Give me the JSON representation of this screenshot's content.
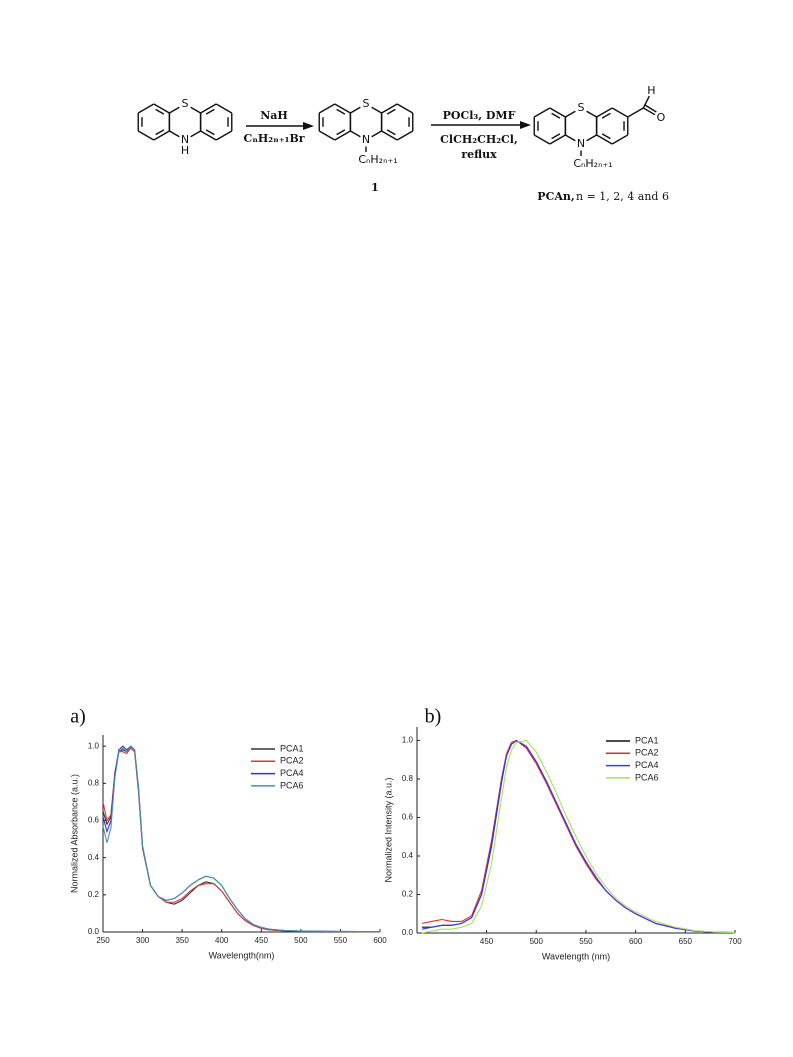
{
  "scheme": {
    "compounds": [
      {
        "atoms": [
          "S",
          "N",
          "H"
        ]
      },
      {
        "atoms": [
          "S",
          "N"
        ],
        "substituent": "CₙH₂ₙ₊₁",
        "number": "1"
      },
      {
        "atoms": [
          "S",
          "N",
          "H",
          "O"
        ],
        "substituent": "CₙH₂ₙ₊₁",
        "name": "PCAn,",
        "note": "n = 1, 2, 4 and 6"
      }
    ],
    "steps": [
      {
        "above": [
          "NaH"
        ],
        "below": [
          "CₙH₂ₙ₊₁Br"
        ]
      },
      {
        "above": [
          "POCl₃, DMF"
        ],
        "below": [
          "ClCH₂CH₂Cl,",
          "reflux"
        ]
      }
    ]
  },
  "chart_data": [
    {
      "type": "line",
      "label": "a)",
      "xlabel": "Wavelength(nm)",
      "ylabel": "Normalized Absorbance (a.u.)",
      "xlim": [
        250,
        600
      ],
      "ylim": [
        0,
        1.06
      ],
      "xticks": [
        250,
        300,
        350,
        400,
        450,
        500,
        550,
        600
      ],
      "yticks": [
        {
          "value": 0,
          "label": "0.0"
        },
        0.2,
        0.4,
        0.6,
        0.8,
        {
          "value": 1,
          "label": "1.0"
        }
      ],
      "legend": "upper right",
      "x": [
        250,
        255,
        260,
        265,
        270,
        275,
        280,
        285,
        290,
        295,
        300,
        310,
        320,
        330,
        340,
        350,
        360,
        370,
        380,
        390,
        400,
        410,
        420,
        430,
        440,
        450,
        460,
        480,
        500,
        550,
        600
      ],
      "series": [
        {
          "name": "PCA1",
          "color": "#333333",
          "values": [
            0.65,
            0.58,
            0.62,
            0.85,
            0.97,
            0.98,
            0.97,
            0.99,
            0.97,
            0.75,
            0.45,
            0.25,
            0.19,
            0.16,
            0.15,
            0.17,
            0.21,
            0.25,
            0.27,
            0.26,
            0.22,
            0.16,
            0.1,
            0.06,
            0.035,
            0.02,
            0.012,
            0.006,
            0.004,
            0.002,
            0.001
          ]
        },
        {
          "name": "PCA2",
          "color": "#d83a3a",
          "values": [
            0.7,
            0.6,
            0.63,
            0.86,
            0.97,
            0.97,
            0.96,
            0.99,
            0.97,
            0.76,
            0.46,
            0.25,
            0.19,
            0.16,
            0.16,
            0.18,
            0.22,
            0.25,
            0.26,
            0.26,
            0.22,
            0.16,
            0.1,
            0.06,
            0.035,
            0.02,
            0.012,
            0.006,
            0.004,
            0.002,
            0.001
          ]
        },
        {
          "name": "PCA4",
          "color": "#3434c8",
          "values": [
            0.62,
            0.54,
            0.6,
            0.85,
            0.98,
            1.0,
            0.98,
            1.0,
            0.98,
            0.77,
            0.46,
            0.25,
            0.19,
            0.17,
            0.18,
            0.21,
            0.25,
            0.28,
            0.3,
            0.29,
            0.25,
            0.18,
            0.12,
            0.07,
            0.04,
            0.025,
            0.015,
            0.008,
            0.005,
            0.003,
            0.002
          ]
        },
        {
          "name": "PCA6",
          "color": "#4a90a4",
          "values": [
            0.57,
            0.48,
            0.56,
            0.83,
            0.97,
            0.99,
            0.97,
            1.0,
            0.98,
            0.77,
            0.46,
            0.25,
            0.19,
            0.17,
            0.18,
            0.21,
            0.25,
            0.28,
            0.3,
            0.29,
            0.25,
            0.18,
            0.12,
            0.07,
            0.04,
            0.025,
            0.015,
            0.008,
            0.005,
            0.003,
            0.002
          ]
        }
      ]
    },
    {
      "type": "line",
      "label": "b)",
      "xlabel": "Wavelength (nm)",
      "ylabel": "Normalized Intensity (a.u.)",
      "xlim": [
        380,
        700
      ],
      "ylim": [
        0,
        1.07
      ],
      "xticks": [
        450,
        500,
        550,
        600,
        650,
        700
      ],
      "yticks": [
        {
          "value": 0,
          "label": "0.0"
        },
        0.2,
        0.4,
        0.6,
        0.8,
        {
          "value": 1,
          "label": "1.0"
        }
      ],
      "legend": "upper right",
      "x": [
        385,
        395,
        405,
        415,
        425,
        435,
        445,
        455,
        465,
        470,
        475,
        480,
        490,
        500,
        510,
        520,
        530,
        540,
        550,
        560,
        570,
        580,
        590,
        600,
        620,
        640,
        660,
        680,
        700
      ],
      "series": [
        {
          "name": "PCA1",
          "color": "#111111",
          "values": [
            0.03,
            0.03,
            0.04,
            0.04,
            0.05,
            0.08,
            0.2,
            0.45,
            0.78,
            0.92,
            0.98,
            1.0,
            0.97,
            0.89,
            0.79,
            0.68,
            0.57,
            0.46,
            0.37,
            0.29,
            0.22,
            0.17,
            0.13,
            0.1,
            0.05,
            0.025,
            0.01,
            0.004,
            0.002
          ]
        },
        {
          "name": "PCA2",
          "color": "#e02a2a",
          "values": [
            0.05,
            0.06,
            0.07,
            0.06,
            0.06,
            0.09,
            0.22,
            0.48,
            0.8,
            0.93,
            0.99,
            1.0,
            0.96,
            0.88,
            0.78,
            0.67,
            0.56,
            0.45,
            0.36,
            0.28,
            0.22,
            0.17,
            0.13,
            0.1,
            0.05,
            0.025,
            0.01,
            0.004,
            0.002
          ]
        },
        {
          "name": "PCA4",
          "color": "#3a3af0",
          "values": [
            0.02,
            0.03,
            0.04,
            0.04,
            0.05,
            0.08,
            0.2,
            0.46,
            0.79,
            0.92,
            0.98,
            1.0,
            0.97,
            0.89,
            0.79,
            0.68,
            0.57,
            0.46,
            0.37,
            0.29,
            0.22,
            0.17,
            0.13,
            0.1,
            0.05,
            0.025,
            0.01,
            0.004,
            0.002
          ]
        },
        {
          "name": "PCA6",
          "color": "#a8e060",
          "values": [
            0.0,
            0.01,
            0.02,
            0.02,
            0.03,
            0.05,
            0.14,
            0.36,
            0.7,
            0.86,
            0.95,
            0.99,
            1.0,
            0.94,
            0.84,
            0.73,
            0.61,
            0.5,
            0.4,
            0.31,
            0.24,
            0.18,
            0.14,
            0.11,
            0.06,
            0.03,
            0.012,
            0.005,
            0.002
          ]
        }
      ]
    }
  ]
}
